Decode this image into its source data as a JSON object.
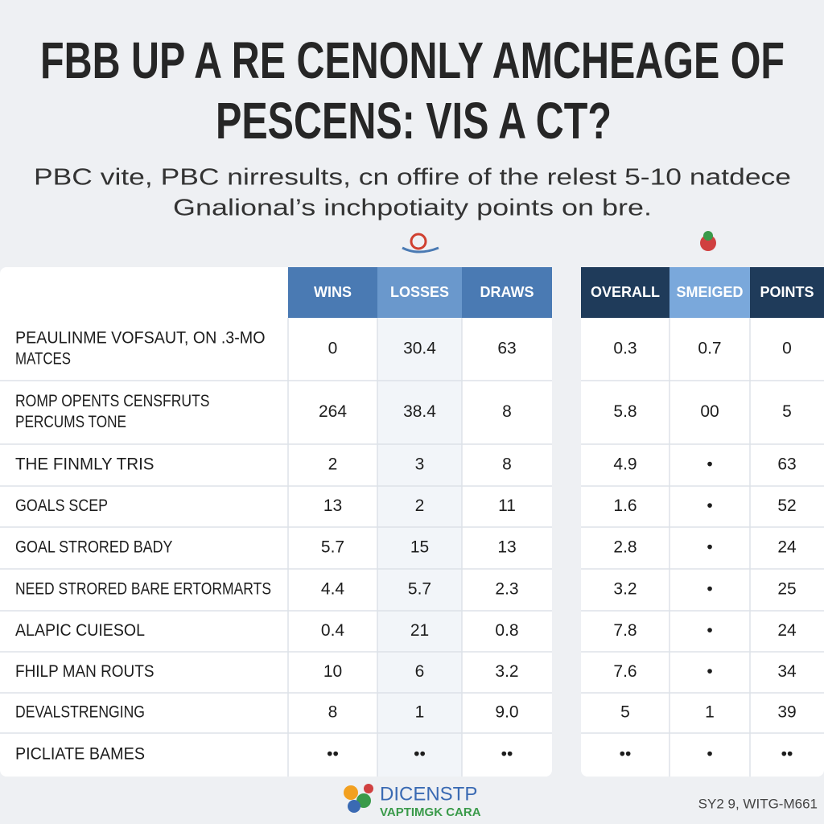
{
  "header": {
    "title": [
      "FBB UP A RE CENONLY AMCHEAGE OF",
      "PESCENS: VIS A CT?"
    ],
    "subtitle": [
      "PBC vite, PBC nirresults, cn offire of the relest 5-10 natdece",
      "Gnalional’s inchpotiaity points on bre."
    ]
  },
  "table": {
    "columns": [
      "WINS",
      "LOSSES",
      "DRAWS",
      "OVERALL",
      "SMEIGED",
      "POINTS"
    ],
    "rows": [
      {
        "label": [
          "PEAULINME VOFSAUT, ON .3-MO",
          "MATCES"
        ],
        "cells": [
          "0",
          "30.4",
          "63",
          "0.3",
          "0.7",
          "0"
        ]
      },
      {
        "label": [
          "ROMP OPENTS CENSFRUTS",
          "PERCUMS TONE"
        ],
        "cells": [
          "264",
          "38.4",
          "8",
          "5.8",
          "00",
          "5"
        ]
      },
      {
        "label": [
          "THE FINMLY TRIS"
        ],
        "cells": [
          "2",
          "3",
          "8",
          "4.9",
          "•",
          "63"
        ]
      },
      {
        "label": [
          "GOALS SCEP"
        ],
        "cells": [
          "13",
          "2",
          "11",
          "1.6",
          "•",
          "52"
        ]
      },
      {
        "label": [
          "GOAL STRORED BADY"
        ],
        "cells": [
          "5.7",
          "15",
          "13",
          "2.8",
          "•",
          "24"
        ]
      },
      {
        "label": [
          "NEED STRORED BARE ERTORMARTS"
        ],
        "cells": [
          "4.4",
          "5.7",
          "2.3",
          "3.2",
          "•",
          "25"
        ]
      },
      {
        "label": [
          "ALAPIC CUIESOL"
        ],
        "cells": [
          "0.4",
          "21",
          "0.8",
          "7.8",
          "•",
          "24"
        ]
      },
      {
        "label": [
          "FHILP MAN ROUTS"
        ],
        "cells": [
          "10",
          "6",
          "3.2",
          "7.6",
          "•",
          "34"
        ]
      },
      {
        "label": [
          "DEVALSTRENGING"
        ],
        "cells": [
          "8",
          "1",
          "9.0",
          "5",
          "1",
          "39"
        ]
      },
      {
        "label": [
          "PICLIATE BAMES"
        ],
        "cells": [
          "••",
          "••",
          "••",
          "••",
          "•",
          "••"
        ]
      }
    ]
  },
  "footer": {
    "brand": [
      "DICENSTP",
      "VAPTIMGK CARA"
    ],
    "code": "SY2 9, WITG-M661"
  }
}
